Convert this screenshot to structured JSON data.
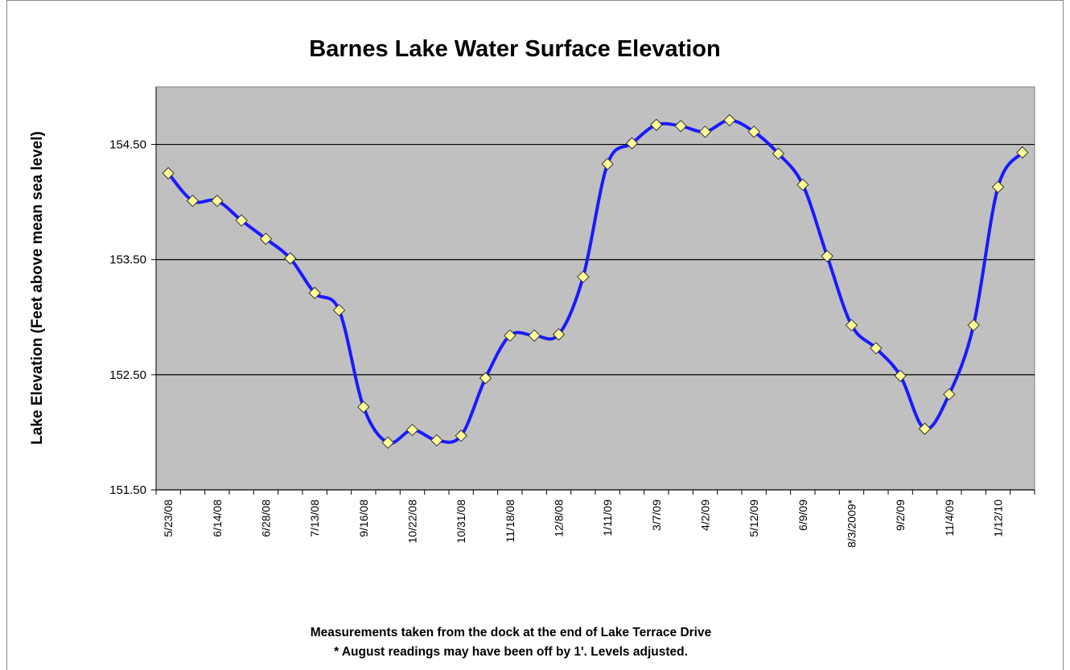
{
  "chart_data": {
    "type": "line",
    "title": "Barnes Lake Water Surface Elevation",
    "y_label": "Lake Elevation (Feet  above mean sea level)",
    "notes": [
      "Measurements taken from the dock at the end of Lake Terrace Drive",
      "* August readings may have been off by 1'.  Levels adjusted."
    ],
    "categories": [
      "5/23/08",
      null,
      "6/14/08",
      null,
      "6/28/08",
      null,
      "7/13/08",
      null,
      "9/16/08",
      null,
      "10/22/08",
      null,
      "10/31/08",
      null,
      "11/18/08",
      null,
      "12/8/08",
      null,
      "1/11/09",
      null,
      "3/7/09",
      null,
      "4/2/09",
      null,
      "5/12/09",
      null,
      "6/9/09",
      null,
      "8/3/2009*",
      null,
      "9/2/09",
      null,
      "11/4/09",
      null,
      "1/12/10",
      null
    ],
    "series": [
      {
        "name": "Lake Elevation",
        "color": "#1a1aff",
        "marker_color": "#ffff99",
        "values": [
          154.25,
          154.01,
          154.01,
          153.84,
          153.68,
          153.51,
          153.21,
          153.06,
          152.22,
          151.91,
          152.02,
          151.93,
          151.97,
          152.47,
          152.84,
          152.84,
          152.85,
          153.35,
          154.33,
          154.51,
          154.67,
          154.66,
          154.61,
          154.71,
          154.61,
          154.42,
          154.15,
          153.53,
          152.93,
          152.73,
          152.49,
          152.03,
          152.33,
          152.93,
          154.13,
          154.43
        ]
      }
    ],
    "ylim": [
      151.5,
      155
    ],
    "yticks": [
      {
        "value": 151.5,
        "label": "151.50"
      },
      {
        "value": 152.5,
        "label": "152.50"
      },
      {
        "value": 153.5,
        "label": "153.50"
      },
      {
        "value": 154.5,
        "label": "154.50"
      }
    ],
    "grid": true,
    "plot_background": "#c0c0c0"
  }
}
